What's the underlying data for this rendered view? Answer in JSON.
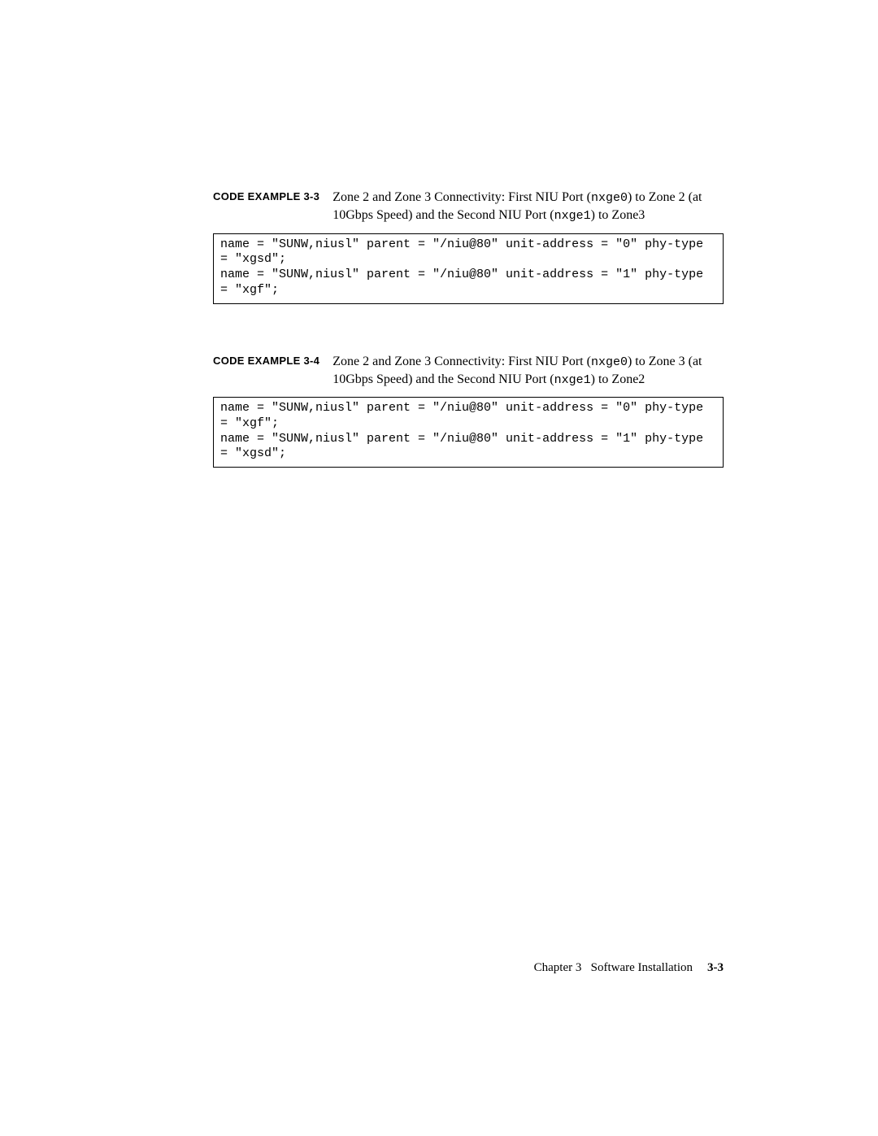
{
  "example1": {
    "label": "CODE EXAMPLE 3-3",
    "caption_prefix": "Zone 2 and Zone 3 Connectivity: First NIU Port (",
    "caption_mono1": "nxge0",
    "caption_mid": ") to Zone 2 (at 10Gbps Speed) and the Second NIU Port (",
    "caption_mono2": "nxge1",
    "caption_suffix": ") to Zone3",
    "code": "name = \"SUNW,niusl\" parent = \"/niu@80\" unit-address = \"0\" phy-type = \"xgsd\";\nname = \"SUNW,niusl\" parent = \"/niu@80\" unit-address = \"1\" phy-type = \"xgf\";"
  },
  "example2": {
    "label": "CODE EXAMPLE 3-4",
    "caption_prefix": "Zone 2 and Zone 3 Connectivity: First NIU Port (",
    "caption_mono1": "nxge0",
    "caption_mid": ") to Zone 3 (at 10Gbps Speed) and the Second NIU Port (",
    "caption_mono2": "nxge1",
    "caption_suffix": ") to Zone2",
    "code": "name = \"SUNW,niusl\" parent = \"/niu@80\" unit-address = \"0\" phy-type = \"xgf\";\nname = \"SUNW,niusl\" parent = \"/niu@80\" unit-address = \"1\" phy-type = \"xgsd\";"
  },
  "footer": {
    "chapter": "Chapter 3",
    "title": "Software Installation",
    "pagenum": "3-3"
  }
}
